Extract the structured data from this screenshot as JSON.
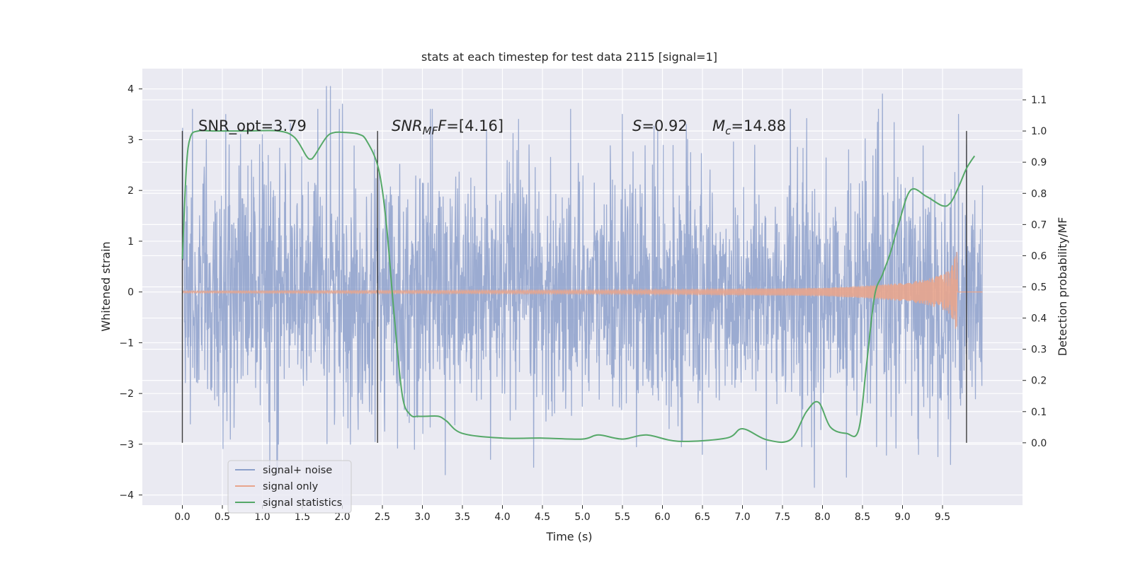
{
  "chart_data": {
    "type": "line",
    "title": "stats at each timestep for test data 2115 [signal=1]",
    "xlabel": "Time (s)",
    "ylabel": "Whitened strain",
    "y2label": "Detection probability/MF",
    "xlim": [
      -0.5,
      10.5
    ],
    "ylim": [
      -4.2,
      4.4
    ],
    "y2lim": [
      -0.2,
      1.2
    ],
    "xticks": [
      0.0,
      0.5,
      1.0,
      1.5,
      2.0,
      2.5,
      3.0,
      3.5,
      4.0,
      4.5,
      5.0,
      5.5,
      6.0,
      6.5,
      7.0,
      7.5,
      8.0,
      8.5,
      9.0,
      9.5
    ],
    "xtick_labels": [
      "0.0",
      "0.5",
      "1.0",
      "1.5",
      "2.0",
      "2.5",
      "3.0",
      "3.5",
      "4.0",
      "4.5",
      "5.0",
      "5.5",
      "6.0",
      "6.5",
      "7.0",
      "7.5",
      "8.0",
      "8.5",
      "9.0",
      "9.5"
    ],
    "yticks": [
      -4,
      -3,
      -2,
      -1,
      0,
      1,
      2,
      3,
      4
    ],
    "ytick_labels": [
      "−4",
      "−3",
      "−2",
      "−1",
      "0",
      "1",
      "2",
      "3",
      "4"
    ],
    "y2ticks": [
      0.0,
      0.1,
      0.2,
      0.3,
      0.4,
      0.5,
      0.6,
      0.7,
      0.8,
      0.9,
      1.0,
      1.1
    ],
    "y2tick_labels": [
      "0.0",
      "0.1",
      "0.2",
      "0.3",
      "0.4",
      "0.5",
      "0.6",
      "0.7",
      "0.8",
      "0.9",
      "1.0",
      "1.1"
    ],
    "grid": true,
    "legend": {
      "placement": "lower-left"
    },
    "annotations": {
      "snr_opt": "SNR_opt=3.79",
      "snr_mf_symbol": "SNR",
      "snr_mf_sub": "MF",
      "snr_mf_value": "=[4.16]",
      "s_symbol": "S",
      "s_value": "=0.92",
      "mc_symbol": "M",
      "mc_sub": "c",
      "mc_value": "=14.88"
    },
    "vertical_markers": {
      "x": [
        0.0,
        2.44,
        9.8
      ],
      "y2_range": [
        0.0,
        1.0
      ]
    },
    "series": [
      {
        "name": "signal+ noise",
        "axis": "left",
        "color": "#8da0cb",
        "x_range": [
          0.0,
          10.0
        ],
        "envelope_peaks": [
          [
            0.0,
            2.6
          ],
          [
            0.1,
            -2.6
          ],
          [
            0.3,
            3.0
          ],
          [
            0.6,
            -2.9
          ],
          [
            1.0,
            3.1
          ],
          [
            1.2,
            -3.0
          ],
          [
            1.8,
            4.05
          ],
          [
            1.85,
            4.05
          ],
          [
            2.0,
            3.7
          ],
          [
            2.1,
            -3.0
          ],
          [
            2.4,
            2.8
          ],
          [
            2.9,
            -3.1
          ],
          [
            3.1,
            3.6
          ],
          [
            3.8,
            3.2
          ],
          [
            3.85,
            -3.3
          ],
          [
            4.2,
            3.4
          ],
          [
            5.5,
            3.5
          ],
          [
            6.3,
            3.3
          ],
          [
            6.5,
            -3.2
          ],
          [
            7.3,
            -3.5
          ],
          [
            7.6,
            3.6
          ],
          [
            7.9,
            -3.85
          ],
          [
            8.3,
            -3.65
          ],
          [
            8.75,
            3.9
          ],
          [
            9.2,
            -3.2
          ],
          [
            9.6,
            -3.4
          ],
          [
            9.7,
            3.5
          ],
          [
            9.8,
            2.9
          ],
          [
            10.0,
            2.1
          ]
        ]
      },
      {
        "name": "signal only",
        "axis": "left",
        "color": "#e8a58d",
        "envelope": {
          "t": [
            0.0,
            5.5,
            8.0,
            8.5,
            9.0,
            9.3,
            9.5,
            9.6,
            9.68
          ],
          "amp": [
            0.02,
            0.04,
            0.08,
            0.12,
            0.18,
            0.25,
            0.35,
            0.45,
            0.8
          ]
        }
      },
      {
        "name": "signal statistics",
        "axis": "right",
        "color": "#55a868",
        "x": [
          0.0,
          0.05,
          0.1,
          0.2,
          0.4,
          0.8,
          1.2,
          1.4,
          1.55,
          1.6,
          1.65,
          1.8,
          1.9,
          2.05,
          2.2,
          2.3,
          2.45,
          2.55,
          2.65,
          2.75,
          2.85,
          2.95,
          3.05,
          3.2,
          3.3,
          3.5,
          4.0,
          4.5,
          5.0,
          5.2,
          5.5,
          5.8,
          6.2,
          6.8,
          7.0,
          7.3,
          7.6,
          7.8,
          7.95,
          8.1,
          8.3,
          8.45,
          8.55,
          8.65,
          8.75,
          8.85,
          8.95,
          9.1,
          9.3,
          9.5,
          9.6,
          9.7,
          9.8,
          9.9
        ],
        "values": [
          0.59,
          0.88,
          0.98,
          1.0,
          1.0,
          1.0,
          1.0,
          0.98,
          0.92,
          0.91,
          0.92,
          0.98,
          0.995,
          0.995,
          0.99,
          0.97,
          0.88,
          0.7,
          0.4,
          0.15,
          0.09,
          0.085,
          0.085,
          0.085,
          0.07,
          0.03,
          0.015,
          0.015,
          0.012,
          0.025,
          0.012,
          0.025,
          0.005,
          0.015,
          0.045,
          0.01,
          0.01,
          0.1,
          0.13,
          0.05,
          0.03,
          0.04,
          0.25,
          0.47,
          0.54,
          0.61,
          0.7,
          0.81,
          0.79,
          0.76,
          0.77,
          0.82,
          0.88,
          0.92
        ]
      }
    ]
  }
}
